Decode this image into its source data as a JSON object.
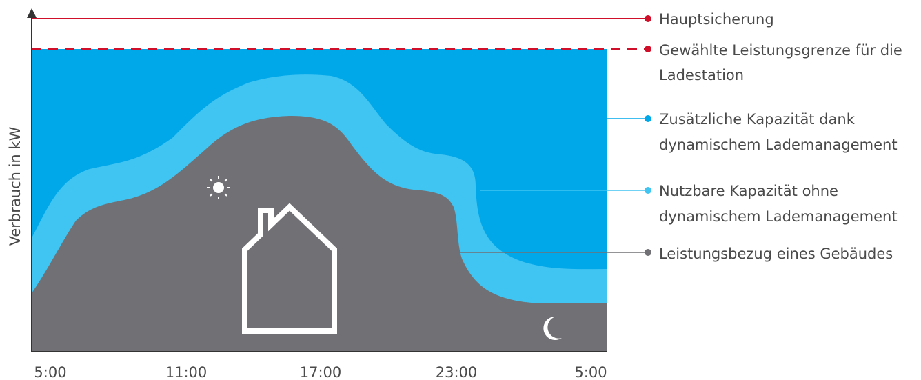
{
  "colors": {
    "building": "#717175",
    "usable": "#40c4f2",
    "additional": "#00a8ea",
    "fuse": "#d0102a",
    "limit": "#d0102a",
    "axis": "#333333",
    "icon": "#ffffff"
  },
  "axis": {
    "ylabel": "Verbrauch in kW",
    "xticks": [
      "5:00",
      "11:00",
      "17:00",
      "23:00",
      "5:00"
    ]
  },
  "legend": {
    "fuse": "Hauptsicherung",
    "limit": [
      "Gewählte Leistungsgrenze für die",
      "Ladestation"
    ],
    "additional": [
      "Zusätzliche Kapazität dank",
      "dynamischem Lademanagement"
    ],
    "usable": [
      "Nutzbare Kapazität ohne",
      "dynamischem Lademanagement"
    ],
    "building": "Leistungsbezug eines Gebäudes"
  },
  "icons": {
    "day": "sun-icon",
    "night": "moon-icon",
    "building": "house-icon"
  }
}
